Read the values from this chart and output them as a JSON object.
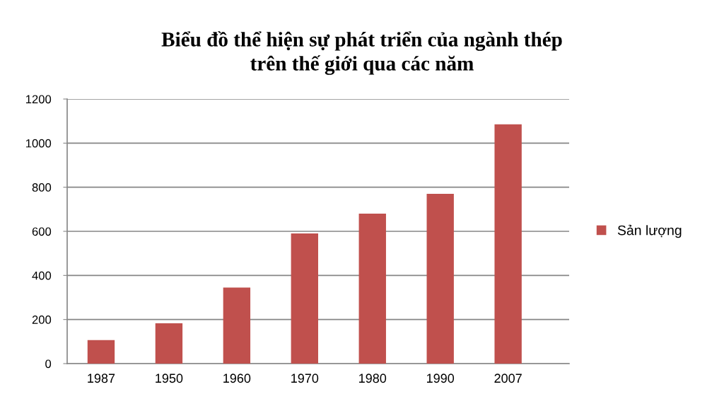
{
  "chart_data": {
    "type": "bar",
    "title": "Biểu đồ thể hiện sự phát triển của ngành thép\ntrên thế giới qua các năm",
    "categories": [
      "1987",
      "1950",
      "1960",
      "1970",
      "1980",
      "1990",
      "2007"
    ],
    "series": [
      {
        "name": "Sản lượng",
        "color": "#c0504d",
        "values": [
          107,
          183,
          345,
          590,
          680,
          770,
          1085
        ]
      }
    ],
    "ylim": [
      0,
      1200
    ],
    "yticks": [
      0,
      200,
      400,
      600,
      800,
      1000,
      1200
    ],
    "grid": "y",
    "legend": "right"
  }
}
